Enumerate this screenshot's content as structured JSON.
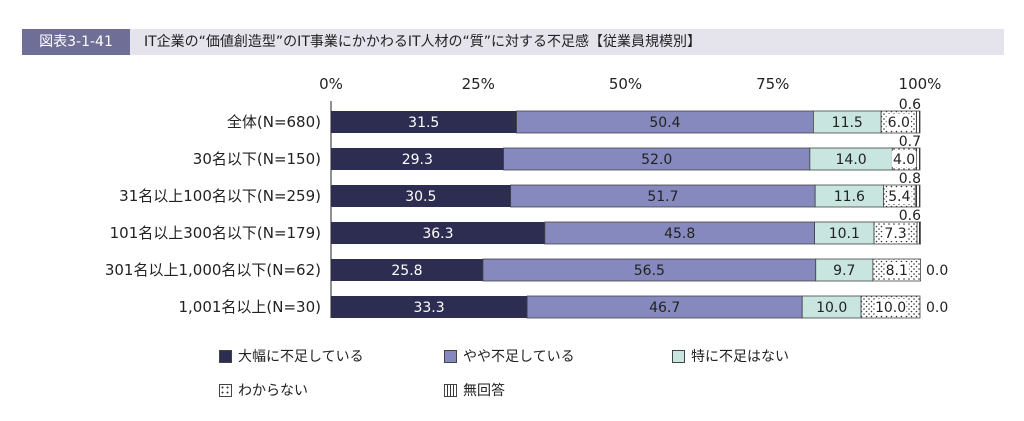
{
  "header": {
    "figure_number": "図表3-1-41",
    "title": "IT企業の“価値創造型”のIT事業にかかわるIT人材の“質”に対する不足感【従業員規模別】"
  },
  "colors": {
    "severe": "#2d2d52",
    "somewhat": "#8689bd",
    "not_particularly": "#c8e6df",
    "unknown": "#ffffff",
    "no_answer": "#ffffff",
    "title_bg": "#e5e3ec",
    "figure_number_bg": "#6e6e96"
  },
  "chart_data": {
    "type": "bar",
    "orientation": "horizontal",
    "stacked": true,
    "categories": [
      "全体(N=680)",
      "30名以下(N=150)",
      "31名以上100名以下(N=259)",
      "101名以上300名以下(N=179)",
      "301名以上1,000名以下(N=62)",
      "1,001名以上(N=30)"
    ],
    "series": [
      {
        "name": "大幅に不足している",
        "values": [
          31.5,
          29.3,
          30.5,
          36.3,
          25.8,
          33.3
        ],
        "labels": [
          "31.5",
          "29.3",
          "30.5",
          "36.3",
          "25.8",
          "33.3"
        ],
        "pattern": "solid"
      },
      {
        "name": "やや不足している",
        "values": [
          50.4,
          52.0,
          51.7,
          45.8,
          56.5,
          46.7
        ],
        "labels": [
          "50.4",
          "52.0",
          "51.7",
          "45.8",
          "56.5",
          "46.7"
        ],
        "pattern": "solid"
      },
      {
        "name": "特に不足はない",
        "values": [
          11.5,
          14.0,
          11.6,
          10.1,
          9.7,
          10.0
        ],
        "labels": [
          "11.5",
          "14.0",
          "11.6",
          "10.1",
          "9.7",
          "10.0"
        ],
        "pattern": "solid"
      },
      {
        "name": "わからない",
        "values": [
          6.0,
          4.0,
          5.4,
          7.3,
          8.1,
          10.0
        ],
        "labels": [
          "6.0",
          "4.0",
          "5.4",
          "7.3",
          "8.1",
          "10.0"
        ],
        "pattern": "dots"
      },
      {
        "name": "無回答",
        "values": [
          0.6,
          0.7,
          0.8,
          0.6,
          0.0,
          0.0
        ],
        "labels": [
          "0.6",
          "0.7",
          "0.8",
          "0.6",
          "0.0",
          "0.0"
        ],
        "pattern": "vlines"
      }
    ],
    "x_ticks": [
      "0%",
      "25%",
      "50%",
      "75%",
      "100%"
    ],
    "xlim": [
      0,
      100
    ],
    "legend_placement": "bottom",
    "legend_order": [
      0,
      1,
      2,
      3,
      4
    ]
  }
}
